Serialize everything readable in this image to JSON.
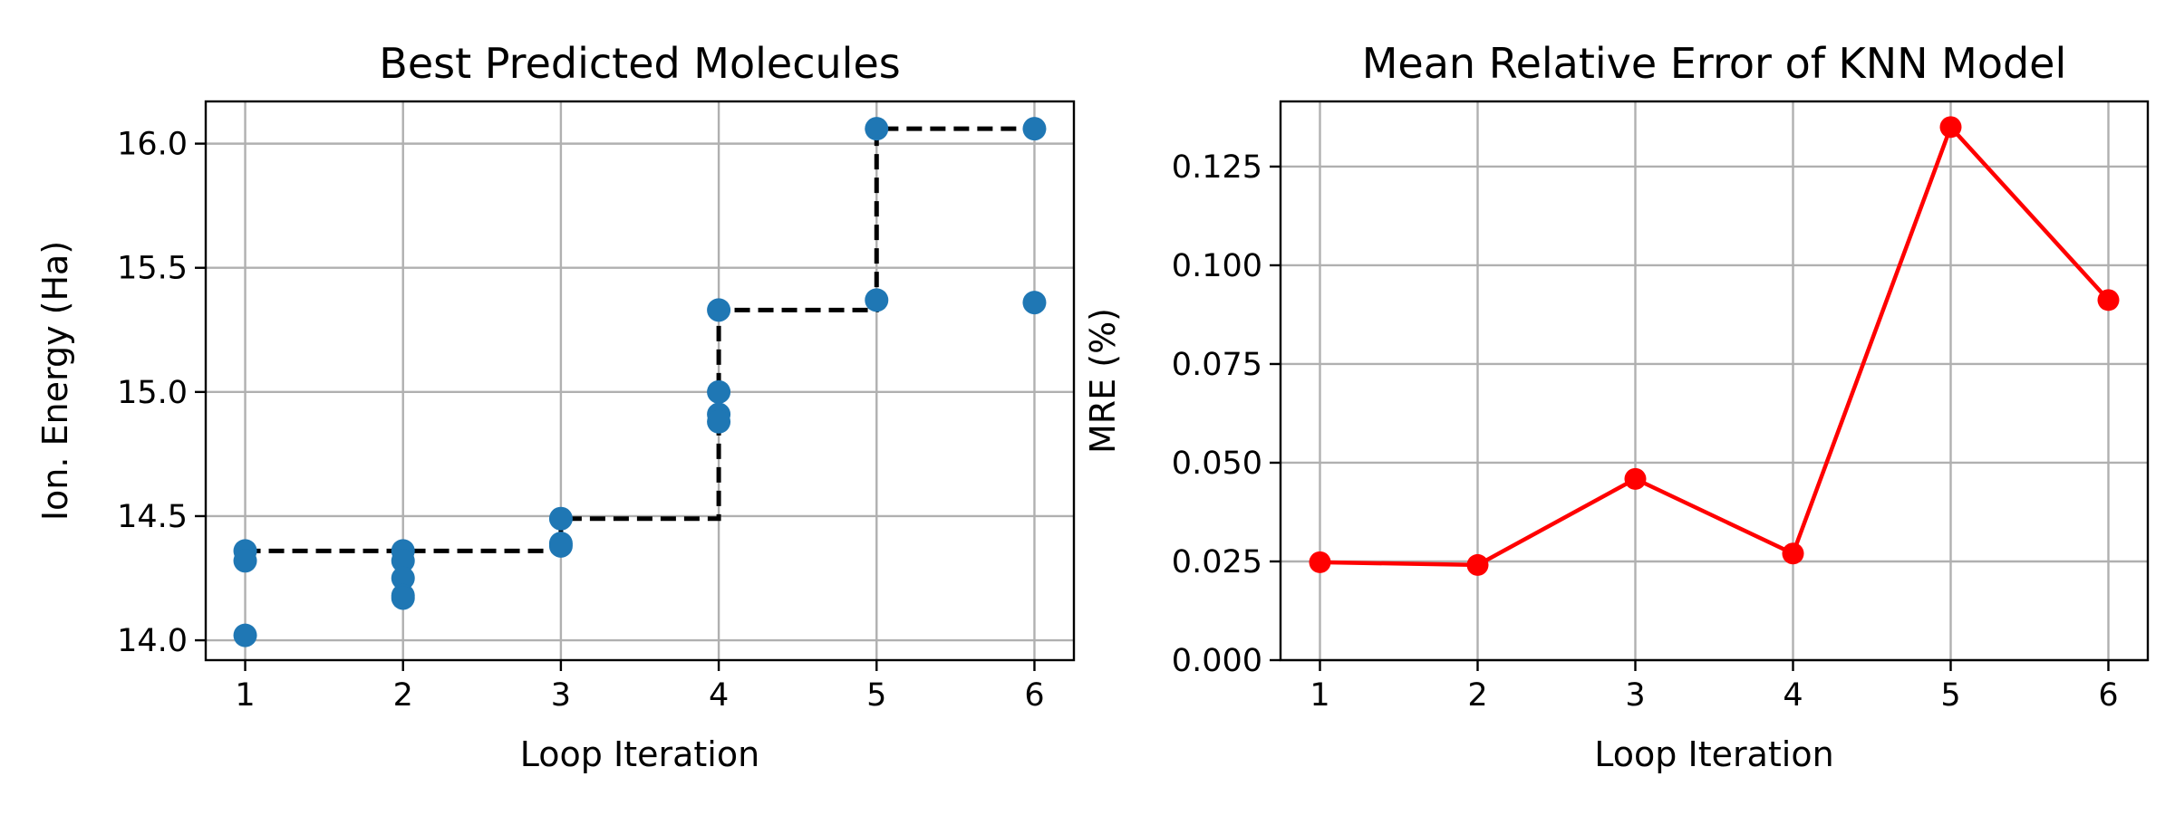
{
  "chart_data": [
    {
      "type": "scatter",
      "title": "Best Predicted Molecules",
      "xlabel": "Loop Iteration",
      "ylabel": "Ion. Energy (Ha)",
      "xlim": [
        0.75,
        6.25
      ],
      "ylim": [
        13.92,
        16.17
      ],
      "xticks": [
        1,
        2,
        3,
        4,
        5,
        6
      ],
      "yticks": [
        14.0,
        14.5,
        15.0,
        15.5,
        16.0
      ],
      "ytick_labels": [
        "14.0",
        "14.5",
        "15.0",
        "15.5",
        "16.0"
      ],
      "grid": true,
      "points": {
        "color": "#1f77b4",
        "x": [
          1,
          1,
          1,
          2,
          2,
          2,
          2,
          2,
          3,
          3,
          3,
          4,
          4,
          4,
          4,
          5,
          5,
          6,
          6
        ],
        "y": [
          14.36,
          14.32,
          14.02,
          14.36,
          14.32,
          14.25,
          14.18,
          14.17,
          14.49,
          14.39,
          14.38,
          15.33,
          15.0,
          14.91,
          14.88,
          16.06,
          15.37,
          16.06,
          15.36
        ]
      },
      "best_so_far": {
        "style": "dashed-step",
        "color": "#000000",
        "x": [
          1,
          2,
          3,
          4,
          5,
          6
        ],
        "y": [
          14.36,
          14.36,
          14.49,
          15.33,
          16.06,
          16.06
        ]
      }
    },
    {
      "type": "line",
      "title": "Mean Relative Error of KNN Model",
      "xlabel": "Loop Iteration",
      "ylabel": "MRE (%)",
      "xlim": [
        0.75,
        6.25
      ],
      "ylim": [
        0.0,
        0.1415
      ],
      "xticks": [
        1,
        2,
        3,
        4,
        5,
        6
      ],
      "yticks": [
        0.0,
        0.025,
        0.05,
        0.075,
        0.1,
        0.125
      ],
      "ytick_labels": [
        "0.000",
        "0.025",
        "0.050",
        "0.075",
        "0.100",
        "0.125"
      ],
      "grid": true,
      "series": [
        {
          "color": "#ff0000",
          "marker": "circle",
          "x": [
            1,
            2,
            3,
            4,
            5,
            6
          ],
          "y": [
            0.0248,
            0.0241,
            0.0459,
            0.027,
            0.135,
            0.0912
          ]
        }
      ]
    }
  ]
}
